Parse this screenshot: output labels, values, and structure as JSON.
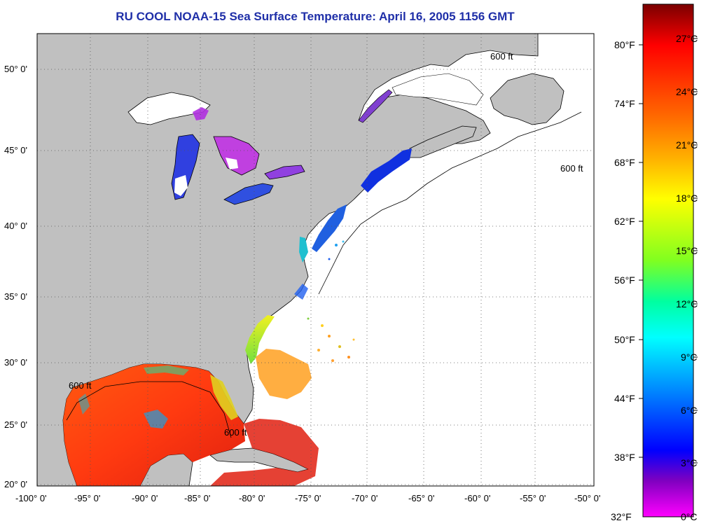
{
  "title": "RU COOL  NOAA-15  Sea Surface Temperature:  April 16, 2005 1156 GMT",
  "map": {
    "latitude_labels": [
      "50° 0'",
      "45° 0'",
      "40° 0'",
      "35° 0'",
      "30° 0'",
      "25° 0'",
      "20° 0'"
    ],
    "longitude_labels": [
      "-100° 0'",
      "-95° 0'",
      "-90° 0'",
      "-85° 0'",
      "-80° 0'",
      "-75° 0'",
      "-70° 0'",
      "-65° 0'",
      "-60° 0'",
      "-55° 0'",
      "-50° 0'"
    ],
    "isobath_label": "600 ft",
    "colors": {
      "land": "#c0c0c0",
      "ocean": "#ffffff",
      "grid": "#555555"
    }
  },
  "colorbar": {
    "fahrenheit_labels": [
      "80°F",
      "74°F",
      "68°F",
      "62°F",
      "56°F",
      "50°F",
      "44°F",
      "38°F",
      "32°F"
    ],
    "celsius_labels": [
      "27°C",
      "24°C",
      "21°C",
      "18°C",
      "15°C",
      "12°C",
      "9°C",
      "6°C",
      "3°C",
      "0°C"
    ],
    "gradient_colors_top_to_bottom": [
      "#8b0000",
      "#ff0000",
      "#ff6600",
      "#ffaa00",
      "#ffff00",
      "#80ff00",
      "#00ffa0",
      "#00ffff",
      "#0080ff",
      "#0000ff",
      "#8000c0",
      "#ff00ff"
    ]
  }
}
